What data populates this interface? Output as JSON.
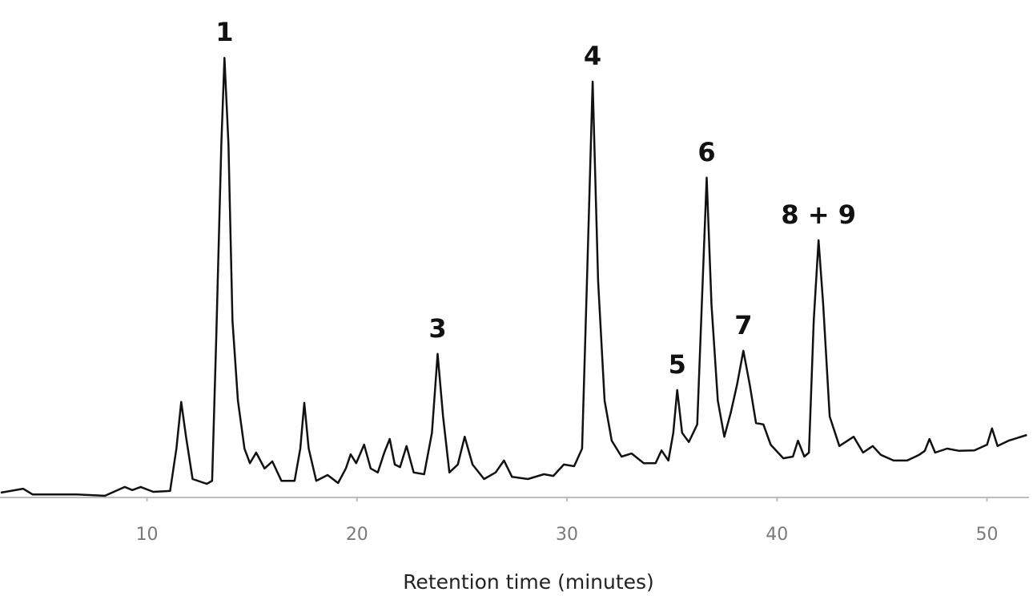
{
  "chart_data": {
    "type": "line",
    "x_label": "Retention time (minutes)",
    "xlim": [
      3,
      52
    ],
    "xticks": [
      10,
      20,
      30,
      40,
      50
    ],
    "ylim": [
      0,
      100
    ],
    "color": "#111111",
    "x": [
      3.04,
      4.1,
      4.56,
      5.3,
      6.65,
      8.0,
      8.94,
      9.3,
      9.7,
      10.3,
      11.1,
      11.4,
      11.63,
      11.86,
      12.17,
      12.85,
      13.1,
      13.3,
      13.54,
      13.69,
      13.88,
      14.07,
      14.33,
      14.64,
      14.9,
      15.2,
      15.6,
      15.97,
      16.4,
      17.03,
      17.3,
      17.49,
      17.7,
      18.06,
      18.6,
      19.1,
      19.47,
      19.7,
      19.96,
      20.34,
      20.65,
      20.99,
      21.3,
      21.56,
      21.8,
      22.05,
      22.36,
      22.7,
      23.2,
      23.57,
      23.84,
      24.1,
      24.4,
      24.8,
      25.13,
      25.5,
      26.05,
      26.6,
      27.0,
      27.38,
      28.14,
      28.9,
      29.35,
      29.85,
      30.34,
      30.72,
      30.95,
      31.22,
      31.48,
      31.79,
      32.13,
      32.6,
      33.08,
      33.65,
      34.22,
      34.5,
      34.83,
      35.06,
      35.25,
      35.48,
      35.8,
      36.2,
      36.42,
      36.65,
      36.88,
      37.18,
      37.49,
      37.8,
      38.1,
      38.4,
      38.7,
      39.0,
      39.35,
      39.7,
      40.3,
      40.76,
      41.0,
      41.3,
      41.52,
      41.75,
      41.98,
      42.2,
      42.51,
      42.97,
      43.65,
      44.1,
      44.56,
      44.94,
      45.55,
      46.2,
      46.77,
      47.04,
      47.26,
      47.53,
      48.1,
      48.67,
      49.4,
      50.0,
      50.24,
      50.5,
      51.03,
      51.9
    ],
    "values": [
      0.9,
      1.8,
      0.5,
      0.5,
      0.5,
      0.2,
      2.2,
      1.5,
      2.2,
      1.1,
      1.3,
      10.9,
      21.5,
      13.6,
      4,
      2.9,
      3.6,
      36.4,
      80,
      99.6,
      80,
      40,
      21.8,
      10.9,
      7.6,
      10,
      6.4,
      8,
      3.6,
      3.6,
      10.9,
      21.3,
      10.9,
      3.6,
      4.9,
      3.1,
      6.4,
      9.6,
      7.6,
      11.8,
      6.4,
      5.5,
      10,
      13.1,
      7.3,
      6.7,
      11.5,
      5.5,
      5.1,
      14.5,
      32.4,
      18.2,
      5.5,
      7.3,
      13.6,
      7.3,
      4,
      5.5,
      8.2,
      4.5,
      4,
      5.1,
      4.7,
      7.3,
      6.9,
      10.9,
      49,
      94.2,
      49,
      21.8,
      12.7,
      9.1,
      9.8,
      7.6,
      7.6,
      10.5,
      8.2,
      14.5,
      24.2,
      14.5,
      12.4,
      16.4,
      43.6,
      72.4,
      43.6,
      21.8,
      13.6,
      19.1,
      25.5,
      33.1,
      25.5,
      16.7,
      16.4,
      11.8,
      8.7,
      9.1,
      12.7,
      9.1,
      10,
      40,
      58.2,
      43.6,
      18.2,
      11.5,
      13.6,
      10,
      11.5,
      9.5,
      8.2,
      8.2,
      9.5,
      10.4,
      13.1,
      10,
      10.9,
      10.4,
      10.5,
      11.8,
      15.5,
      11.5,
      12.7,
      14
    ],
    "annotations": [
      {
        "text": "1",
        "x": 13.69,
        "y": 99.6
      },
      {
        "text": "3",
        "x": 23.84,
        "y": 32.4
      },
      {
        "text": "4",
        "x": 31.22,
        "y": 94.2
      },
      {
        "text": "5",
        "x": 35.25,
        "y": 24.2
      },
      {
        "text": "6",
        "x": 36.65,
        "y": 72.4
      },
      {
        "text": "7",
        "x": 38.4,
        "y": 33.1
      },
      {
        "text": "8 + 9",
        "x": 41.98,
        "y": 58.2
      }
    ]
  }
}
